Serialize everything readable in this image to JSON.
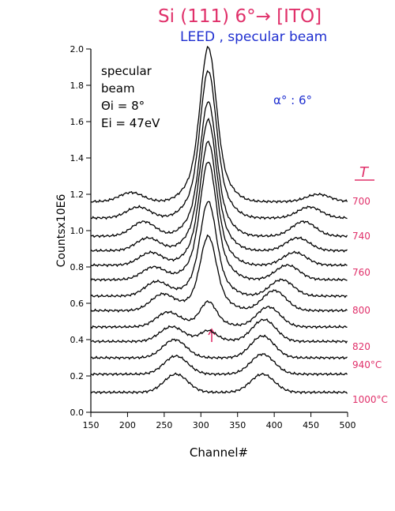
{
  "header": {
    "line1": "Si (111)  6°→ [ITO]",
    "line2": "LEED , specular beam",
    "line1_color": "#e0306a",
    "line2_color": "#1f2fd0"
  },
  "annotations": {
    "specular": "specular",
    "beam": "beam",
    "theta": "Θi = 8°",
    "energy": "Ei = 47eV",
    "alpha": "α° : 6°",
    "alpha_color": "#1f2fd0",
    "temp_header": "T",
    "arrow_color": "#e0306a"
  },
  "chart_data": {
    "type": "line",
    "title": "",
    "xlabel": "Channel#",
    "ylabel": "Countsx10E6",
    "xlim": [
      150,
      500
    ],
    "ylim": [
      0.0,
      2.0
    ],
    "xticks": [
      150,
      200,
      250,
      300,
      350,
      400,
      450,
      500
    ],
    "yticks": [
      0.0,
      0.2,
      0.4,
      0.6,
      0.8,
      1.0,
      1.2,
      1.4,
      1.6,
      1.8,
      2.0
    ],
    "ytick_labels": [
      "0.0",
      "0.2",
      "0.4",
      "0.6",
      "0.8",
      "1.0",
      "1.2",
      "1.4",
      "1.6",
      "1.8",
      "2.0"
    ],
    "grid": false,
    "line_color": "#000000",
    "label_color": "#e0306a",
    "series": [
      {
        "baseline": 1.16,
        "main": 0.85,
        "left_x": 205,
        "left_h": 0.05,
        "right_x": 460,
        "right_h": 0.04
      },
      {
        "baseline": 1.07,
        "main": 0.81,
        "left_x": 215,
        "left_h": 0.06,
        "right_x": 448,
        "right_h": 0.06
      },
      {
        "baseline": 0.97,
        "main": 0.74,
        "left_x": 222,
        "left_h": 0.08,
        "right_x": 440,
        "right_h": 0.08
      },
      {
        "baseline": 0.89,
        "main": 0.72,
        "left_x": 228,
        "left_h": 0.07,
        "right_x": 432,
        "right_h": 0.07
      },
      {
        "baseline": 0.81,
        "main": 0.68,
        "left_x": 232,
        "left_h": 0.07,
        "right_x": 428,
        "right_h": 0.07
      },
      {
        "baseline": 0.73,
        "main": 0.65,
        "left_x": 236,
        "left_h": 0.07,
        "right_x": 418,
        "right_h": 0.08
      },
      {
        "baseline": 0.64,
        "main": 0.52,
        "left_x": 240,
        "left_h": 0.08,
        "right_x": 410,
        "right_h": 0.09
      },
      {
        "baseline": 0.56,
        "main": 0.41,
        "left_x": 248,
        "left_h": 0.09,
        "right_x": 400,
        "right_h": 0.11
      },
      {
        "baseline": 0.47,
        "main": 0.14,
        "left_x": 255,
        "left_h": 0.08,
        "right_x": 392,
        "right_h": 0.11
      },
      {
        "baseline": 0.39,
        "main": 0.06,
        "left_x": 260,
        "left_h": 0.08,
        "right_x": 386,
        "right_h": 0.12
      },
      {
        "baseline": 0.3,
        "main": 0.0,
        "left_x": 264,
        "left_h": 0.1,
        "right_x": 384,
        "right_h": 0.12
      },
      {
        "baseline": 0.21,
        "main": 0.0,
        "left_x": 266,
        "left_h": 0.1,
        "right_x": 384,
        "right_h": 0.11
      },
      {
        "baseline": 0.11,
        "main": 0.0,
        "left_x": 266,
        "left_h": 0.1,
        "right_x": 384,
        "right_h": 0.1
      }
    ],
    "temperature_labels": [
      {
        "text": "700",
        "y": 1.16
      },
      {
        "text": "740",
        "y": 0.97
      },
      {
        "text": "760",
        "y": 0.77
      },
      {
        "text": "800",
        "y": 0.56
      },
      {
        "text": "820",
        "y": 0.36
      },
      {
        "text": "940°C",
        "y": 0.26
      },
      {
        "text": "1000°C",
        "y": 0.07
      }
    ]
  }
}
